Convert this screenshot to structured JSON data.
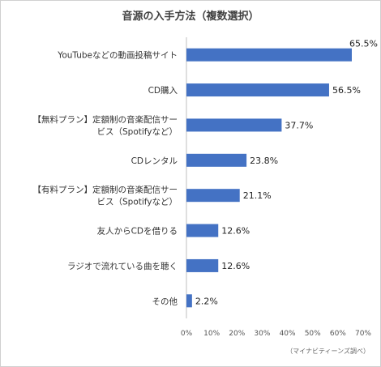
{
  "chart_data": {
    "type": "bar",
    "orientation": "horizontal",
    "title": "音源の入手方法（複数選択）",
    "categories": [
      [
        "YouTubeなどの動画投稿サイト"
      ],
      [
        "CD購入"
      ],
      [
        "【無料プラン】定額制の音楽配信サー",
        "ビス（Spotifyなど）"
      ],
      [
        "CDレンタル"
      ],
      [
        "【有料プラン】定額制の音楽配信サー",
        "ビス（Spotifyなど）"
      ],
      [
        "友人からCDを借りる"
      ],
      [
        "ラジオで流れている曲を聴く"
      ],
      [
        "その他"
      ]
    ],
    "values": [
      65.5,
      56.5,
      37.7,
      23.8,
      21.1,
      12.6,
      12.6,
      2.2
    ],
    "value_labels": [
      "65.5%",
      "56.5%",
      "37.7%",
      "23.8%",
      "21.1%",
      "12.6%",
      "12.6%",
      "2.2%"
    ],
    "xlim": [
      0,
      70
    ],
    "x_ticks": [
      "0%",
      "10%",
      "20%",
      "30%",
      "40%",
      "50%",
      "60%",
      "70%"
    ],
    "grid": false,
    "bar_color": "#4472c4",
    "source": "（マイナビティーンズ調べ）"
  }
}
